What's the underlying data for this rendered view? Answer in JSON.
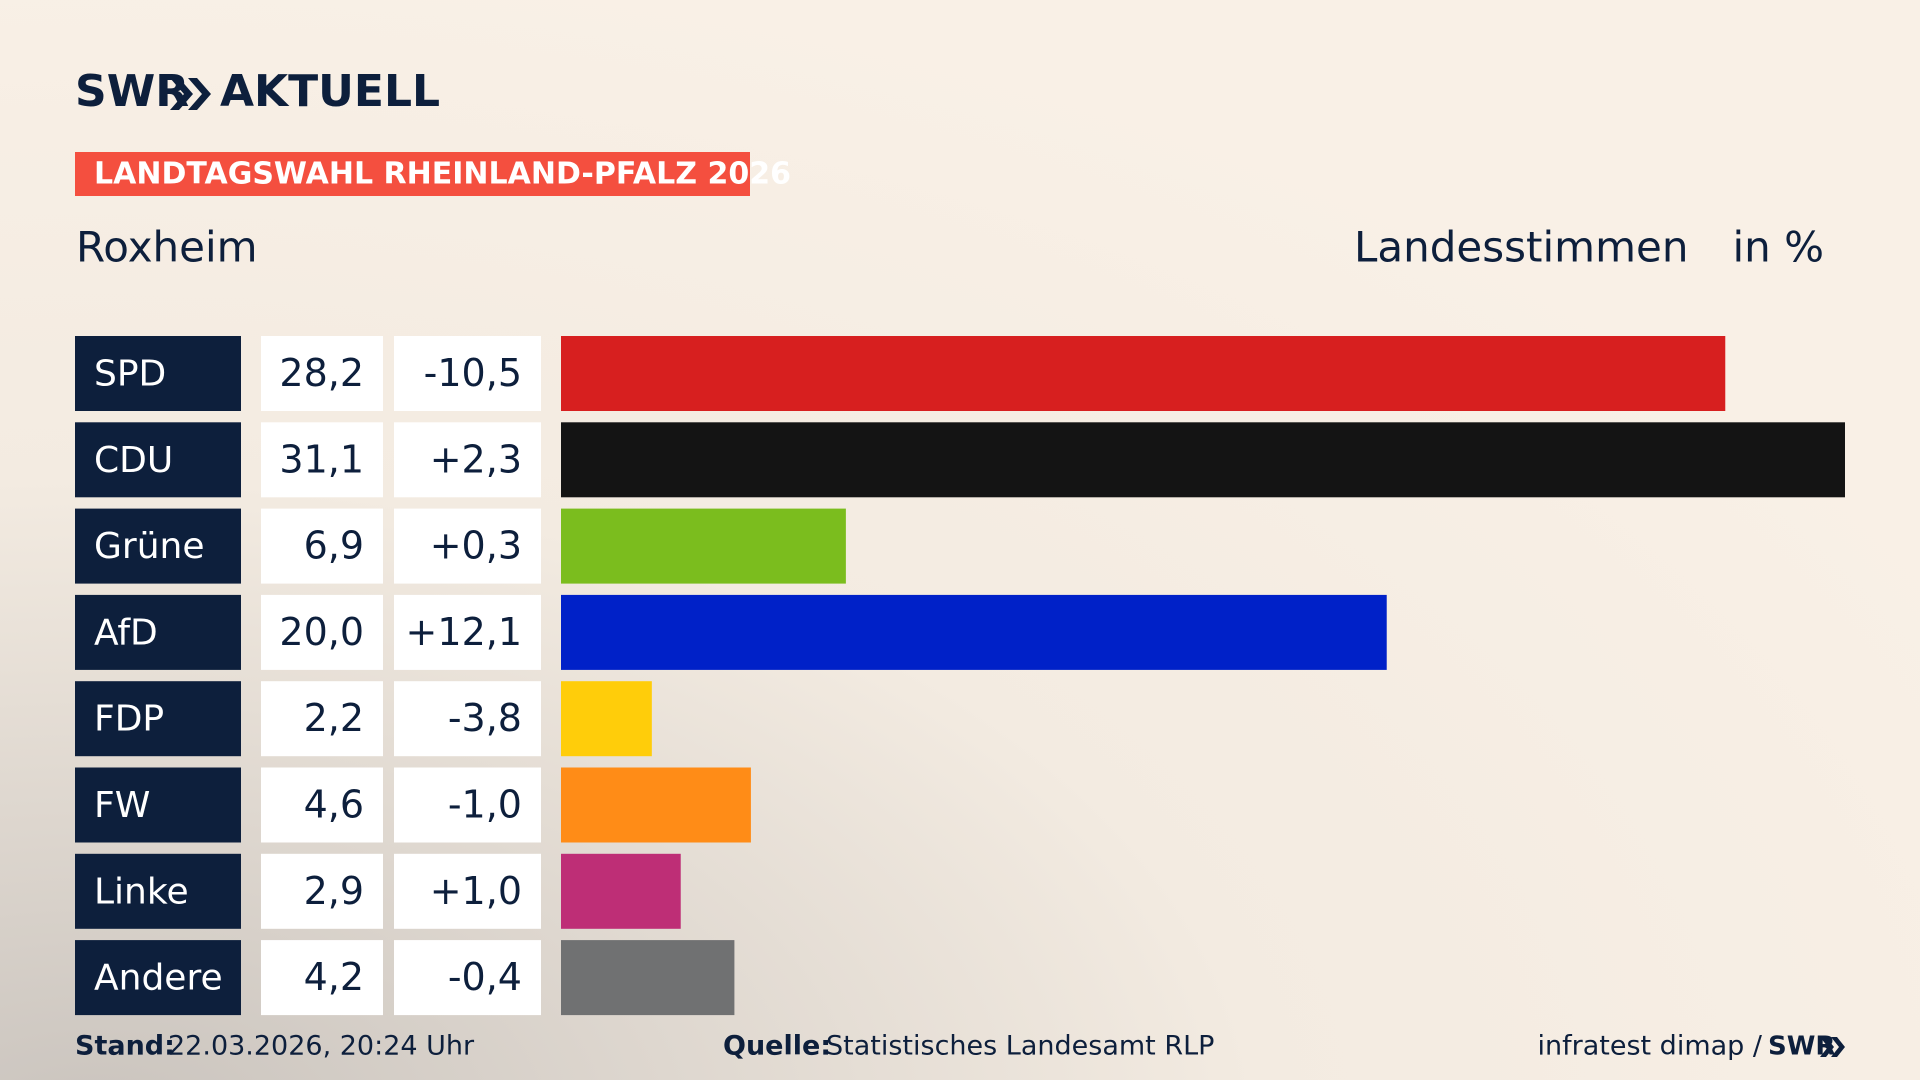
{
  "brand": {
    "left": "SWR",
    "right": "AKTUELL"
  },
  "chart_data": {
    "type": "bar",
    "orientation": "horizontal",
    "title": "LANDTAGSWAHL RHEINLAND-PFALZ 2026",
    "subtitle": "Roxheim",
    "measure": "Landesstimmen",
    "unit": "in %",
    "categories": [
      "SPD",
      "CDU",
      "Grüne",
      "AfD",
      "FDP",
      "FW",
      "Linke",
      "Andere"
    ],
    "values": [
      28.2,
      31.1,
      6.9,
      20.0,
      2.2,
      4.6,
      2.9,
      4.2
    ],
    "value_labels": [
      "28,2",
      "31,1",
      "6,9",
      "20,0",
      "2,2",
      "4,6",
      "2,9",
      "4,2"
    ],
    "change_values": [
      -10.5,
      2.3,
      0.3,
      12.1,
      -3.8,
      -1.0,
      1.0,
      -0.4
    ],
    "change_labels": [
      "-10,5",
      "+2,3",
      "+0,3",
      "+12,1",
      "-3,8",
      "-1,0",
      "+1,0",
      "-0,4"
    ],
    "colors": [
      "#d71f1f",
      "#141414",
      "#7bbd1e",
      "#0021c8",
      "#ffcd0a",
      "#ff8c17",
      "#be2e76",
      "#707172"
    ]
  },
  "footer": {
    "date_label": "Stand:",
    "date": "22.03.2026, 20:24 Uhr",
    "source_label": "Quelle:",
    "source": "Statistisches Landesamt RLP",
    "credit": "infratest dimap /",
    "credit_brand": "SWR"
  }
}
